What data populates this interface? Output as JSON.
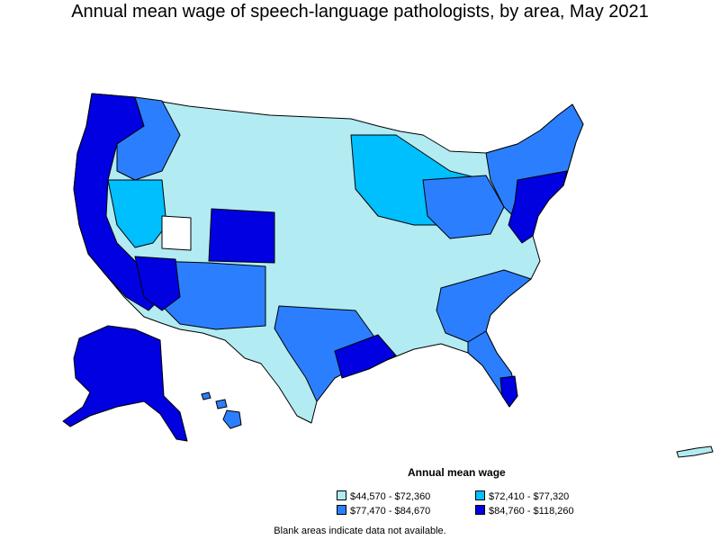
{
  "title": "Annual mean wage of speech-language pathologists, by area, May 2021",
  "legend": {
    "title": "Annual mean wage",
    "items": [
      {
        "label": "$44,570 - $72,360",
        "color": "#b2ebf2"
      },
      {
        "label": "$72,410 - $77,320",
        "color": "#00bfff"
      },
      {
        "label": "$77,470 - $84,670",
        "color": "#2b7fff"
      },
      {
        "label": "$84,760 - $118,260",
        "color": "#0000e0"
      }
    ]
  },
  "note": "Blank areas indicate data not available.",
  "colors": {
    "background": "#ffffff",
    "border": "#000000",
    "no_data": "#ffffff"
  }
}
